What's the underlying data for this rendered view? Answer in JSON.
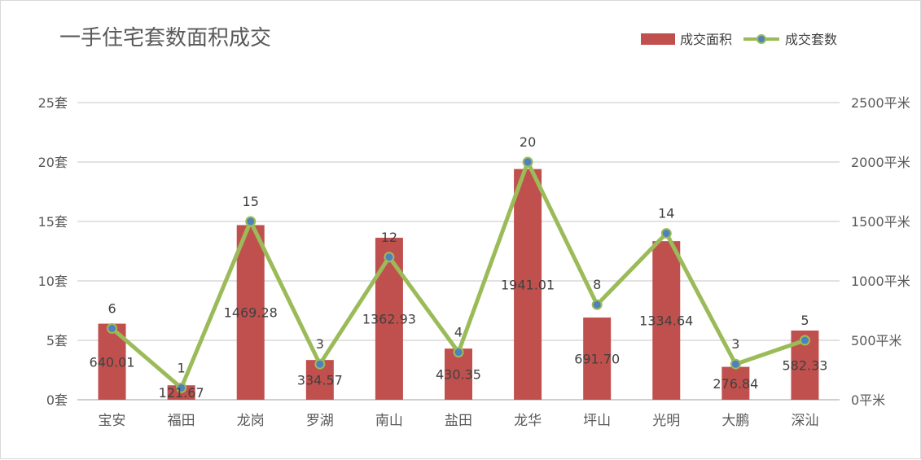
{
  "chart_data": {
    "type": "bar+line",
    "title": "一手住宅套数面积成交",
    "categories": [
      "宝安",
      "福田",
      "龙岗",
      "罗湖",
      "南山",
      "盐田",
      "龙华",
      "坪山",
      "光明",
      "大鹏",
      "深汕"
    ],
    "series": [
      {
        "name": "成交面积",
        "type": "bar",
        "axis": "right",
        "color": "#c0504d",
        "values": [
          640.01,
          121.67,
          1469.28,
          334.57,
          1362.93,
          430.35,
          1941.01,
          691.7,
          1334.64,
          276.84,
          582.33
        ],
        "labels": [
          "640.01",
          "121.67",
          "1469.28",
          "334.57",
          "1362.93",
          "430.35",
          "1941.01",
          "691.70",
          "1334.64",
          "276.84",
          "582.33"
        ]
      },
      {
        "name": "成交套数",
        "type": "line",
        "axis": "left",
        "color": "#9bbb59",
        "marker_color": "#4f81bd",
        "values": [
          6,
          1,
          15,
          3,
          12,
          4,
          20,
          8,
          14,
          3,
          5
        ],
        "labels": [
          "6",
          "1",
          "15",
          "3",
          "12",
          "4",
          "20",
          "8",
          "14",
          "3",
          "5"
        ]
      }
    ],
    "y_left": {
      "min": 0,
      "max": 25,
      "ticks": [
        0,
        5,
        10,
        15,
        20,
        25
      ],
      "tick_labels": [
        "0套",
        "5套",
        "10套",
        "15套",
        "20套",
        "25套"
      ]
    },
    "y_right": {
      "min": 0,
      "max": 2500,
      "ticks": [
        0,
        500,
        1000,
        1500,
        2000,
        2500
      ],
      "tick_labels": [
        "0平米",
        "500平米",
        "1000平米",
        "1500平米",
        "2000平米",
        "2500平米"
      ]
    },
    "grid": true,
    "legend": "top-right"
  }
}
